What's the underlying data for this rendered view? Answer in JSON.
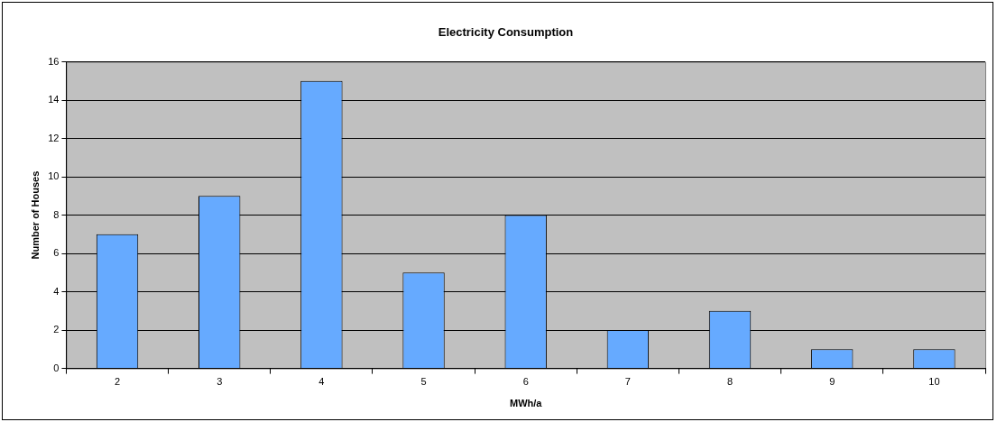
{
  "chart_data": {
    "type": "bar",
    "title": "Electricity Consumption",
    "xlabel": "MWh/a",
    "ylabel": "Number of Houses",
    "categories": [
      "2",
      "3",
      "4",
      "5",
      "6",
      "7",
      "8",
      "9",
      "10"
    ],
    "values": [
      7,
      9,
      15,
      5,
      8,
      2,
      3,
      1,
      1
    ],
    "color": "#66aaff",
    "ylim": [
      0,
      16
    ],
    "yticks": [
      0,
      2,
      4,
      6,
      8,
      10,
      12,
      14,
      16
    ],
    "grid": "y",
    "legend": false
  }
}
